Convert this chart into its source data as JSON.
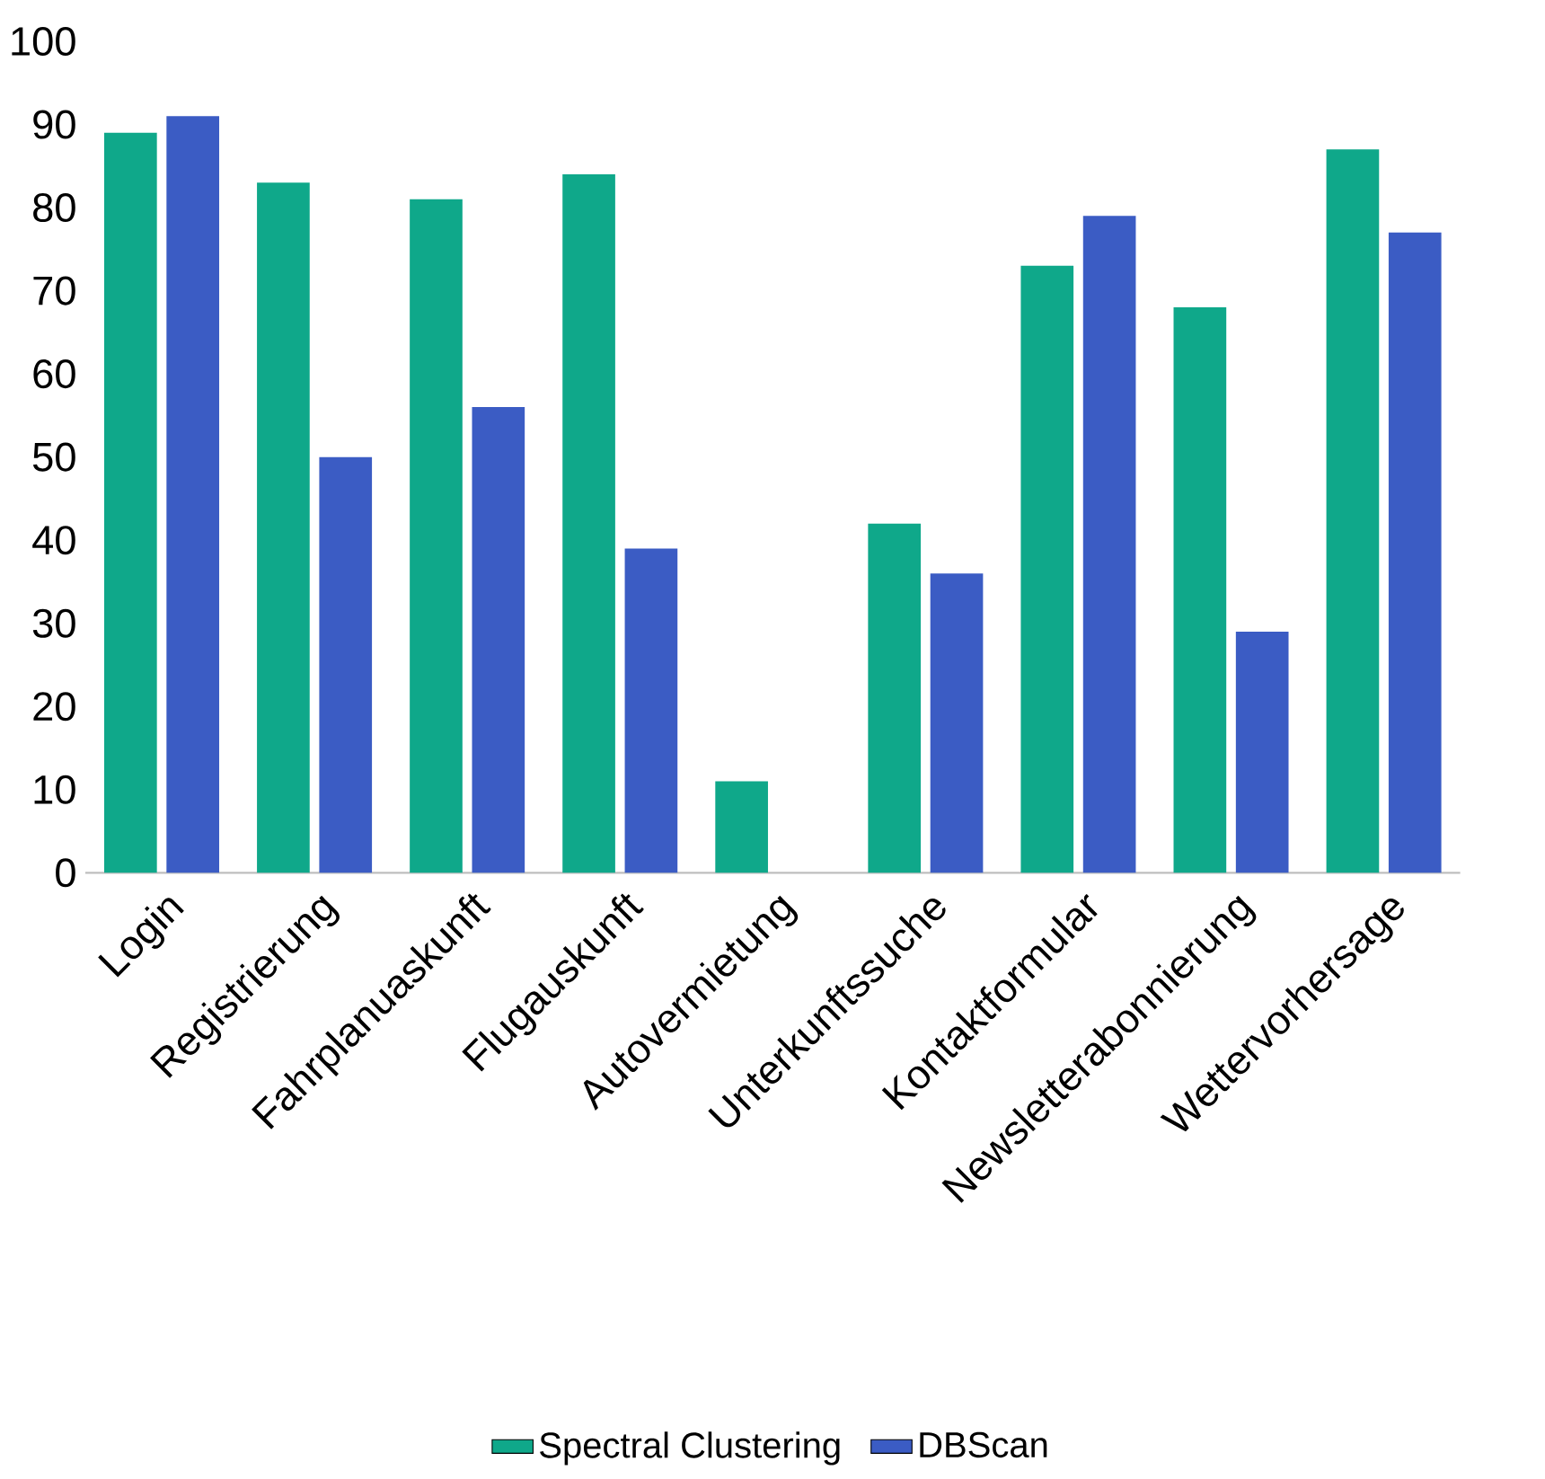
{
  "chart_data": {
    "type": "bar",
    "categories": [
      "Login",
      "Registrierung",
      "Fahrplanuaskunft",
      "Flugauskunft",
      "Autovermietung",
      "Unterkunftssuche",
      "Kontaktformular",
      "Newsletterabonnierung",
      "Wettervorhersage"
    ],
    "series": [
      {
        "name": "Spectral Clustering",
        "color": "#0fa88a",
        "values": [
          89,
          83,
          81,
          84,
          11,
          42,
          73,
          68,
          87
        ]
      },
      {
        "name": "DBScan",
        "color": "#3b5cc4",
        "values": [
          91,
          50,
          56,
          39,
          0,
          36,
          79,
          29,
          77
        ]
      }
    ],
    "ylim": [
      0,
      100
    ],
    "yticks": [
      0,
      10,
      20,
      30,
      40,
      50,
      60,
      70,
      80,
      90,
      100
    ],
    "legend": "bottom"
  }
}
